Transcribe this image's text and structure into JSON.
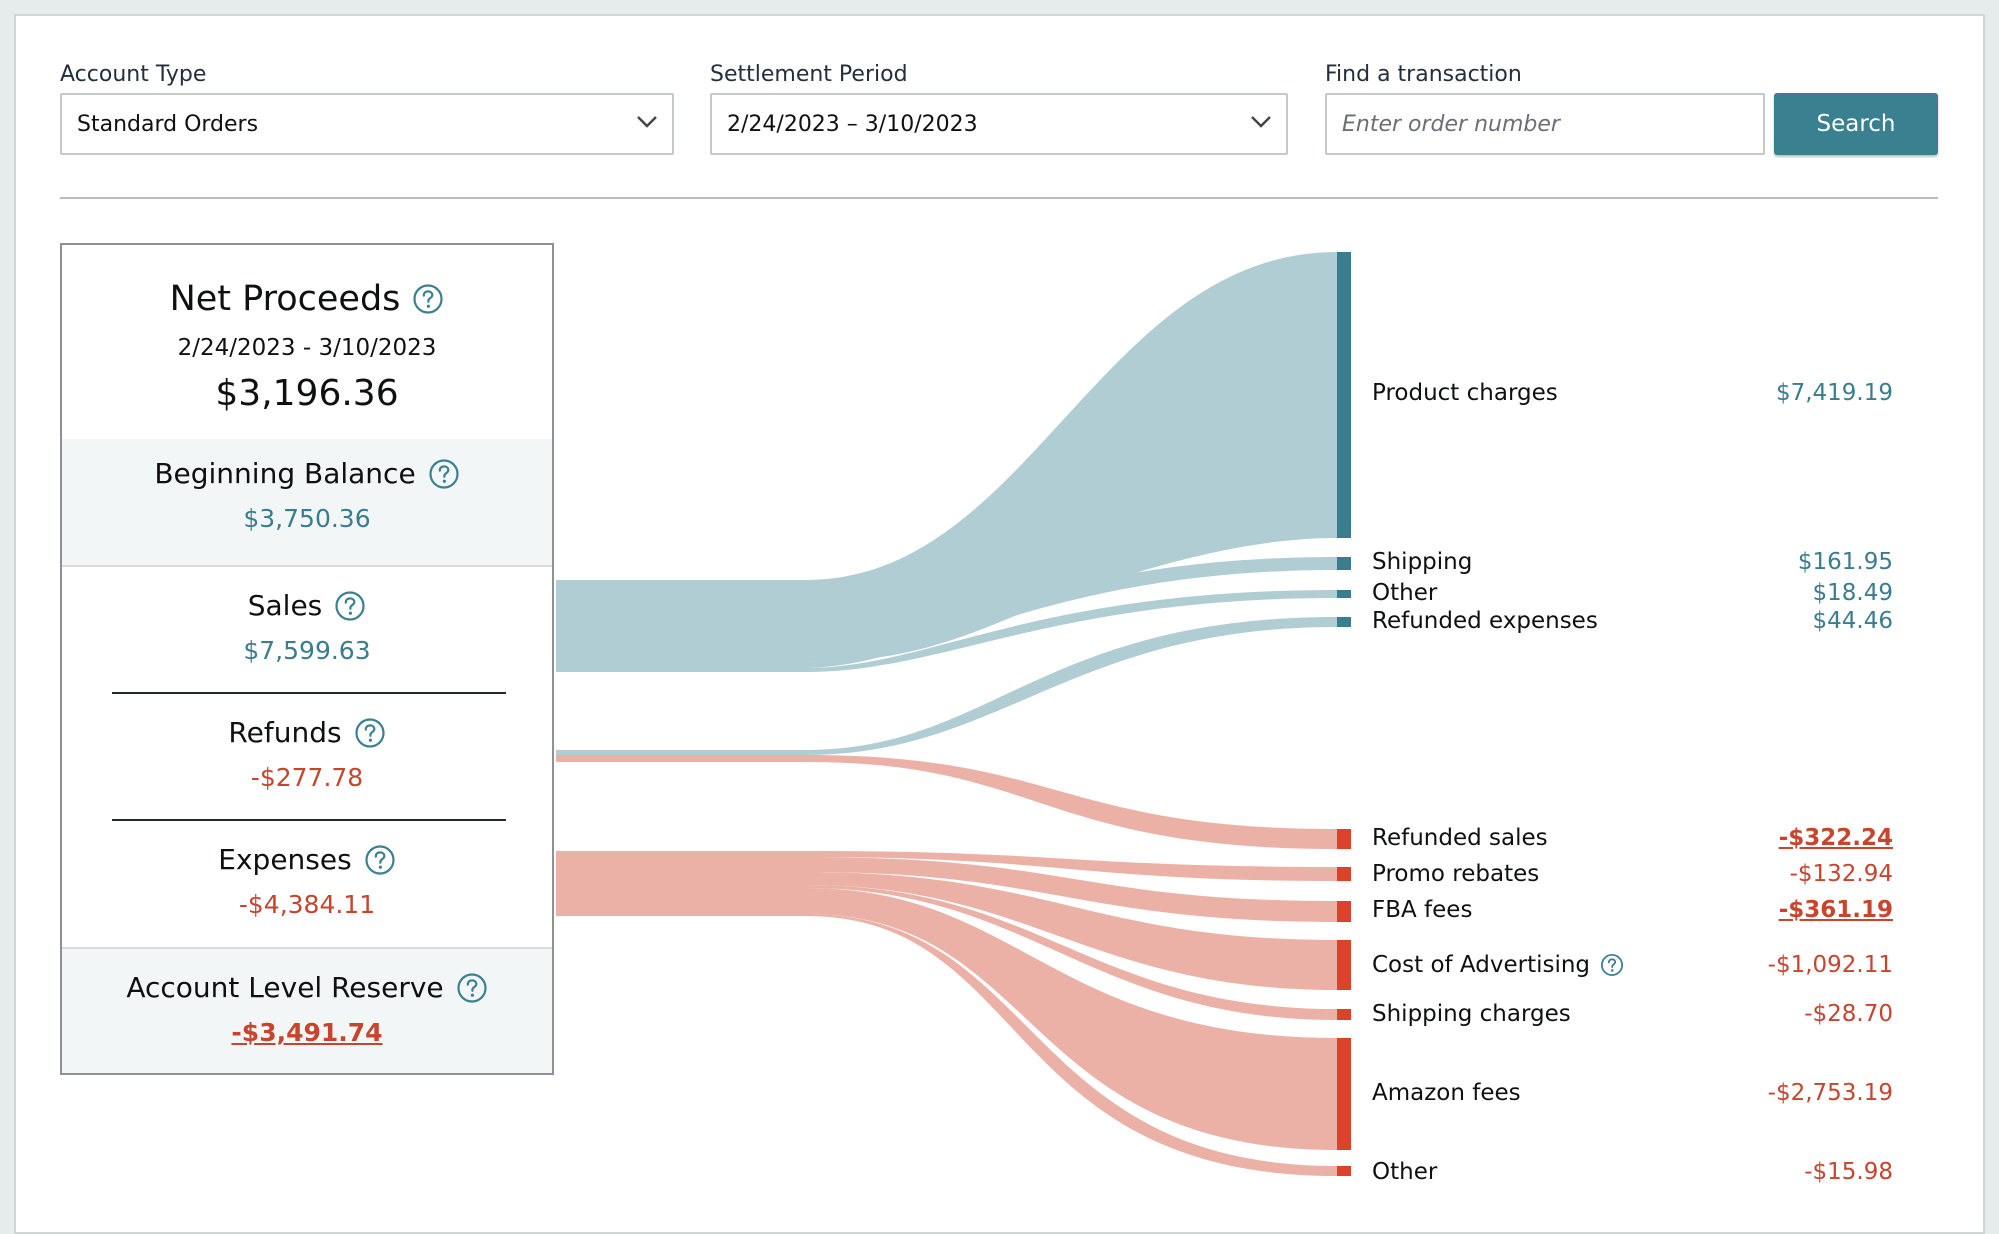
{
  "filters": {
    "account_type": {
      "label": "Account Type",
      "value": "Standard Orders"
    },
    "settlement_period": {
      "label": "Settlement Period",
      "value": "2/24/2023 – 3/10/2023"
    },
    "find": {
      "label": "Find a transaction",
      "placeholder": "Enter order number",
      "button": "Search"
    }
  },
  "summary": {
    "net_proceeds": {
      "title": "Net Proceeds",
      "date_range": "2/24/2023 - 3/10/2023",
      "amount": "$3,196.36"
    },
    "beginning_balance": {
      "title": "Beginning Balance",
      "amount": "$3,750.36"
    },
    "sales": {
      "title": "Sales",
      "amount": "$7,599.63"
    },
    "refunds": {
      "title": "Refunds",
      "amount": "-$277.78"
    },
    "expenses": {
      "title": "Expenses",
      "amount": "-$4,384.11"
    },
    "account_level_reserve": {
      "title": "Account Level Reserve",
      "amount": "-$3,491.74"
    }
  },
  "breakdown": [
    {
      "label": "Product charges",
      "amount": "$7,419.19",
      "tone": "teal"
    },
    {
      "label": "Shipping",
      "amount": "$161.95",
      "tone": "teal"
    },
    {
      "label": "Other",
      "amount": "$18.49",
      "tone": "teal"
    },
    {
      "label": "Refunded expenses",
      "amount": "$44.46",
      "tone": "teal"
    },
    {
      "label": "Refunded sales",
      "amount": "-$322.24",
      "tone": "red-underlined"
    },
    {
      "label": "Promo rebates",
      "amount": "-$132.94",
      "tone": "red"
    },
    {
      "label": "FBA fees",
      "amount": "-$361.19",
      "tone": "red-underlined"
    },
    {
      "label": "Cost of Advertising",
      "amount": "-$1,092.11",
      "tone": "red",
      "help_icon": true
    },
    {
      "label": "Shipping charges",
      "amount": "-$28.70",
      "tone": "red"
    },
    {
      "label": "Amazon fees",
      "amount": "-$2,753.19",
      "tone": "red"
    },
    {
      "label": "Other",
      "amount": "-$15.98",
      "tone": "red"
    }
  ],
  "colors": {
    "teal_flow": "#b0cdd4",
    "teal_node": "#3a7d8e",
    "red_flow": "#ecb1a6",
    "red_node": "#d8432a",
    "button": "#3a8091"
  },
  "icons": {
    "help": "question-circle-icon",
    "dropdown": "chevron-down-icon"
  }
}
